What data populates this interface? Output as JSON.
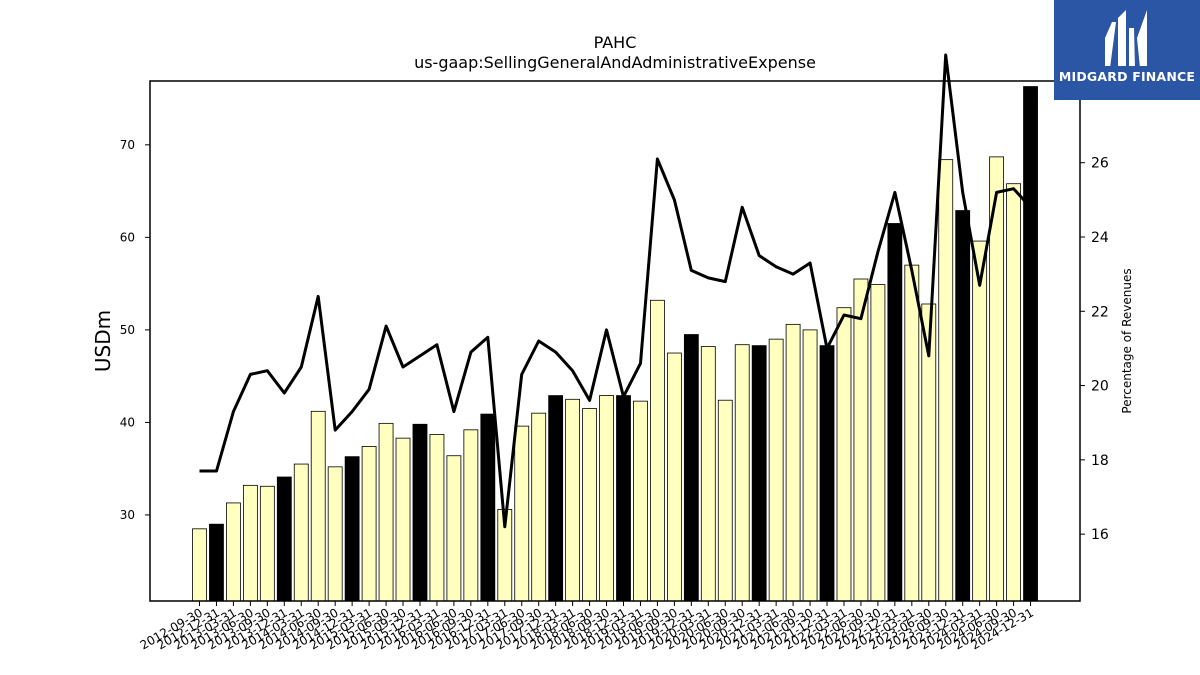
{
  "chart_data": {
    "type": "bar",
    "title": "PAHC",
    "subtitle": "us-gaap:SellingGeneralAndAdministrativeExpense",
    "ylabel": "USDm",
    "y2label": "Percentage of Revenues",
    "ylim": [
      20.7,
      76.9
    ],
    "y2lim": [
      14.2,
      28.2
    ],
    "yticks": [
      30,
      40,
      50,
      60,
      70
    ],
    "y2ticks": [
      16,
      18,
      20,
      22,
      24,
      26
    ],
    "grid": false,
    "colors": {
      "quarter_bar": "#ffffc0",
      "fiscal_year_end_bar": "#000000",
      "line": "#000000"
    },
    "categories": [
      "2012-09-30",
      "2012-12-31",
      "2013-03-31",
      "2013-06-30",
      "2013-09-30",
      "2013-12-31",
      "2014-03-31",
      "2014-06-30",
      "2014-09-30",
      "2014-12-31",
      "2015-03-31",
      "2015-06-30",
      "2015-09-30",
      "2015-12-31",
      "2016-03-31",
      "2016-06-30",
      "2016-09-30",
      "2016-12-31",
      "2017-03-31",
      "2017-06-30",
      "2017-09-30",
      "2017-12-31",
      "2018-03-31",
      "2018-06-30",
      "2018-09-30",
      "2018-12-31",
      "2019-03-31",
      "2019-06-30",
      "2019-09-30",
      "2019-12-31",
      "2020-03-31",
      "2020-06-30",
      "2020-09-30",
      "2020-12-31",
      "2021-03-31",
      "2021-06-30",
      "2021-09-30",
      "2021-12-31",
      "2022-03-31",
      "2022-06-30",
      "2022-09-30",
      "2022-12-31",
      "2023-03-31",
      "2023-06-30",
      "2023-09-30",
      "2023-12-31",
      "2024-03-31",
      "2024-06-30",
      "2024-09-30",
      "2024-12-31"
    ],
    "series": [
      {
        "kind": "bar",
        "values": [
          28.5,
          29.0,
          31.3,
          33.2,
          33.1,
          34.1,
          35.5,
          41.2,
          35.2,
          36.3,
          37.4,
          39.9,
          38.3,
          39.8,
          38.7,
          36.4,
          39.2,
          40.9,
          30.6,
          39.6,
          41.0,
          42.9,
          42.5,
          41.5,
          42.9,
          42.9,
          42.3,
          53.2,
          47.5,
          49.5,
          48.2,
          42.4,
          48.4,
          48.3,
          49.0,
          50.6,
          50.0,
          48.3,
          52.4,
          55.5,
          54.9,
          61.5,
          57.0,
          52.8,
          68.4,
          62.9,
          59.6,
          68.7,
          65.8,
          76.3
        ],
        "fiscal_year_end": [
          false,
          true,
          false,
          false,
          false,
          true,
          false,
          false,
          false,
          true,
          false,
          false,
          false,
          true,
          false,
          false,
          false,
          true,
          false,
          false,
          false,
          true,
          false,
          false,
          false,
          true,
          false,
          false,
          false,
          true,
          false,
          false,
          false,
          true,
          false,
          false,
          false,
          true,
          false,
          false,
          false,
          true,
          false,
          false,
          false,
          true,
          false,
          false,
          false,
          true
        ]
      },
      {
        "kind": "line",
        "axis": "right",
        "values": [
          17.7,
          17.7,
          19.3,
          20.3,
          20.4,
          19.8,
          20.5,
          22.4,
          18.8,
          19.3,
          19.9,
          21.6,
          20.5,
          20.8,
          21.1,
          19.3,
          20.9,
          21.3,
          16.2,
          20.3,
          21.2,
          20.9,
          20.4,
          19.6,
          21.5,
          19.7,
          20.6,
          26.1,
          25.0,
          23.1,
          22.9,
          22.8,
          24.8,
          23.5,
          23.2,
          23.0,
          23.3,
          21.0,
          21.9,
          21.8,
          23.6,
          25.2,
          23.1,
          20.8,
          28.9,
          25.2,
          22.7,
          25.2,
          25.3,
          24.8
        ]
      }
    ]
  },
  "logo": {
    "text": "MIDGARD FINANCE",
    "name": "midgard-finance-logo"
  }
}
